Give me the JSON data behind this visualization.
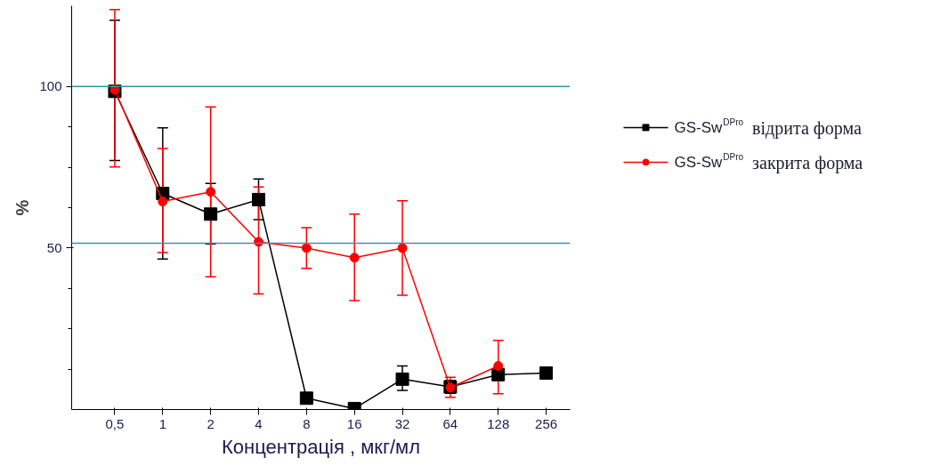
{
  "chart_data": {
    "type": "line",
    "xlabel": "Концентрація , мкг/мл",
    "ylabel": "%",
    "categories": [
      "0,5",
      "1",
      "2",
      "4",
      "8",
      "16",
      "32",
      "64",
      "128",
      "256"
    ],
    "series": [
      {
        "name": "GS-Sw$^{DPro}$ відрита форма",
        "color": "#000000",
        "marker": "square",
        "values": [
          98.5,
          66.9,
          60.5,
          65.0,
          3.5,
          0.3,
          9.4,
          7.0,
          10.8,
          11.3
        ],
        "errors": [
          [
            77.1,
            120.5
          ],
          [
            46.6,
            87.2
          ],
          [
            51.3,
            70.0
          ],
          [
            58.8,
            71.4
          ],
          null,
          null,
          [
            5.9,
            13.5
          ],
          [
            5.0,
            9.0
          ],
          [
            9.5,
            12.1
          ],
          [
            10.0,
            12.6
          ]
        ]
      },
      {
        "name": "GS-Sw$^{DPro}$ закрита форма",
        "color": "#ff0000",
        "marker": "circle",
        "values": [
          99.0,
          64.4,
          67.4,
          51.9,
          50.0,
          47.0,
          50.0,
          6.8,
          13.5,
          null
        ],
        "errors": [
          [
            75.1,
            123.8
          ],
          [
            48.6,
            80.8
          ],
          [
            41.1,
            93.7
          ],
          [
            35.8,
            68.9
          ],
          [
            43.7,
            56.3
          ],
          [
            33.7,
            60.5
          ],
          [
            35.4,
            64.6
          ],
          [
            3.8,
            10.0
          ],
          [
            4.9,
            21.4
          ],
          null
        ]
      }
    ],
    "ylim": [
      0,
      125
    ],
    "yticks": [
      {
        "value": 12.5,
        "label": null
      },
      {
        "value": 25,
        "label": null
      },
      {
        "value": 37.5,
        "label": null
      },
      50,
      {
        "value": 62.5,
        "label": null
      },
      {
        "value": 75,
        "label": null
      },
      {
        "value": 87.5,
        "label": null
      },
      100
    ],
    "ref_lines": [
      {
        "axis": "y",
        "value": 100,
        "label": null,
        "color": "#2e9a9a"
      },
      {
        "axis": "y",
        "value": 51.5,
        "label": null,
        "color": "#4a86c8"
      }
    ],
    "grid": false,
    "legend": "right",
    "line_style": "solid"
  }
}
